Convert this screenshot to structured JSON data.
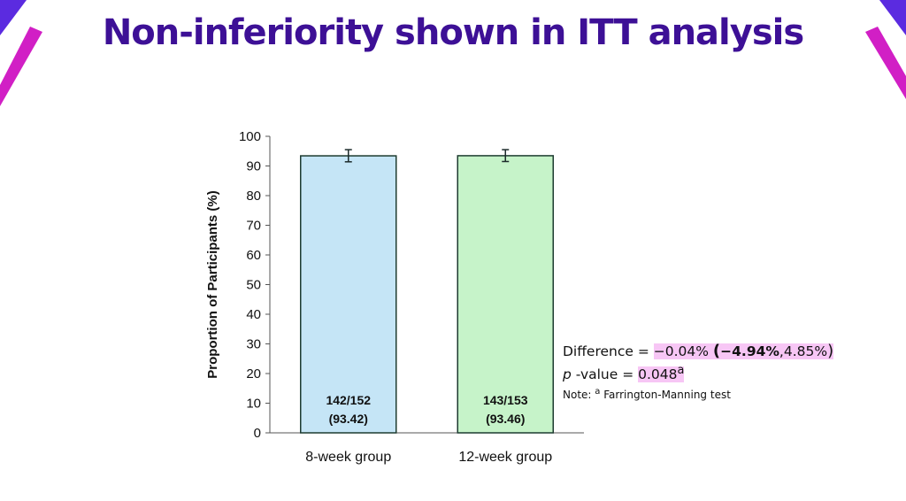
{
  "slide": {
    "title": "Non-inferiority shown in ITT analysis"
  },
  "colors": {
    "title": "#3d1096",
    "accent_magenta": "#d11fc5",
    "accent_purple": "#5b2be0",
    "highlight": "#f7c6f5"
  },
  "chart_data": {
    "type": "bar",
    "ylabel": "Proportion of Participants (%)",
    "xlabel": "",
    "ylim": [
      0,
      100
    ],
    "yticks": [
      0,
      10,
      20,
      30,
      40,
      50,
      60,
      70,
      80,
      90,
      100
    ],
    "categories": [
      "8-week group",
      "12-week group"
    ],
    "values": [
      93.42,
      93.46
    ],
    "error_low": [
      91.4,
      91.5
    ],
    "error_high": [
      95.5,
      95.5
    ],
    "bar_colors": [
      "#c5e5f6",
      "#c6f3c9"
    ],
    "bar_labels": [
      {
        "fraction": "142/152",
        "percent": "(93.42)"
      },
      {
        "fraction": "143/153",
        "percent": "(93.46)"
      }
    ],
    "grid": false,
    "legend": "none"
  },
  "annotation": {
    "difference_label": "Difference = ",
    "difference_value": "−0.04%",
    "ci_open": "(",
    "ci_low": "−4.94%",
    "ci_sep": ",",
    "ci_high": "4.85%",
    "ci_close": ")",
    "p_symbol": "p",
    "p_label": " -value = ",
    "p_value": "0.048",
    "p_superscript": "a",
    "note_label": "Note: ",
    "note_superscript": "a",
    "note_text": " Farrington-Manning test"
  }
}
